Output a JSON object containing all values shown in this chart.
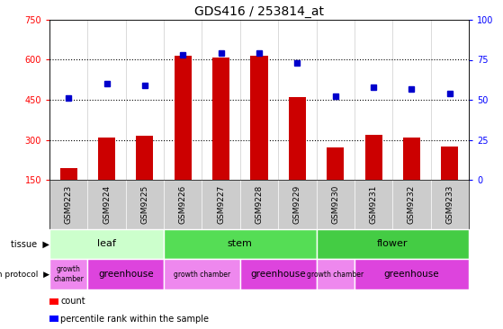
{
  "title": "GDS416 / 253814_at",
  "samples": [
    "GSM9223",
    "GSM9224",
    "GSM9225",
    "GSM9226",
    "GSM9227",
    "GSM9228",
    "GSM9229",
    "GSM9230",
    "GSM9231",
    "GSM9232",
    "GSM9233"
  ],
  "counts": [
    195,
    310,
    315,
    615,
    610,
    615,
    460,
    270,
    320,
    310,
    275
  ],
  "percentiles": [
    51,
    60,
    59,
    78,
    79,
    79,
    73,
    52,
    58,
    57,
    54
  ],
  "ylim_left": [
    150,
    750
  ],
  "ylim_right": [
    0,
    100
  ],
  "yticks_left": [
    150,
    300,
    450,
    600,
    750
  ],
  "yticks_right": [
    0,
    25,
    50,
    75,
    100
  ],
  "hlines": [
    300,
    450,
    600
  ],
  "tissue_groups": [
    {
      "label": "leaf",
      "start": 0,
      "end": 3,
      "color": "#ccffcc"
    },
    {
      "label": "stem",
      "start": 3,
      "end": 7,
      "color": "#55dd55"
    },
    {
      "label": "flower",
      "start": 7,
      "end": 11,
      "color": "#44cc44"
    }
  ],
  "protocol_groups": [
    {
      "label": "growth\nchamber",
      "start": 0,
      "end": 1,
      "color": "#ee88ee"
    },
    {
      "label": "greenhouse",
      "start": 1,
      "end": 3,
      "color": "#dd44dd"
    },
    {
      "label": "growth chamber",
      "start": 3,
      "end": 5,
      "color": "#ee88ee"
    },
    {
      "label": "greenhouse",
      "start": 5,
      "end": 7,
      "color": "#dd44dd"
    },
    {
      "label": "growth chamber",
      "start": 7,
      "end": 8,
      "color": "#ee88ee"
    },
    {
      "label": "greenhouse",
      "start": 8,
      "end": 11,
      "color": "#dd44dd"
    }
  ],
  "bar_color": "#cc0000",
  "dot_color": "#0000cc",
  "plot_bg": "#ffffff",
  "sample_bg": "#cccccc",
  "title_fontsize": 10,
  "bar_width": 0.45
}
